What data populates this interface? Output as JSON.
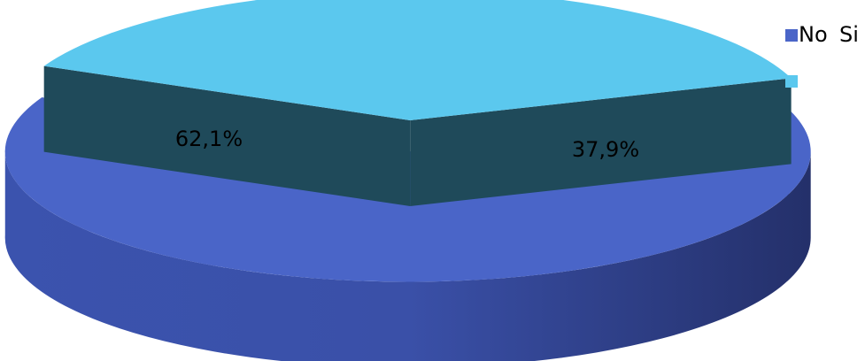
{
  "chart_data": {
    "type": "pie",
    "three_d": true,
    "exploded": true,
    "slices": [
      {
        "category": "No",
        "value": 62.1,
        "label": "62,1%",
        "color": "#4A65C8"
      },
      {
        "category": "Si",
        "value": 37.9,
        "label": "37,9%",
        "color": "#5BC8EE"
      }
    ],
    "legend": {
      "position": "top-right",
      "entries": [
        "No",
        "Si"
      ]
    }
  }
}
